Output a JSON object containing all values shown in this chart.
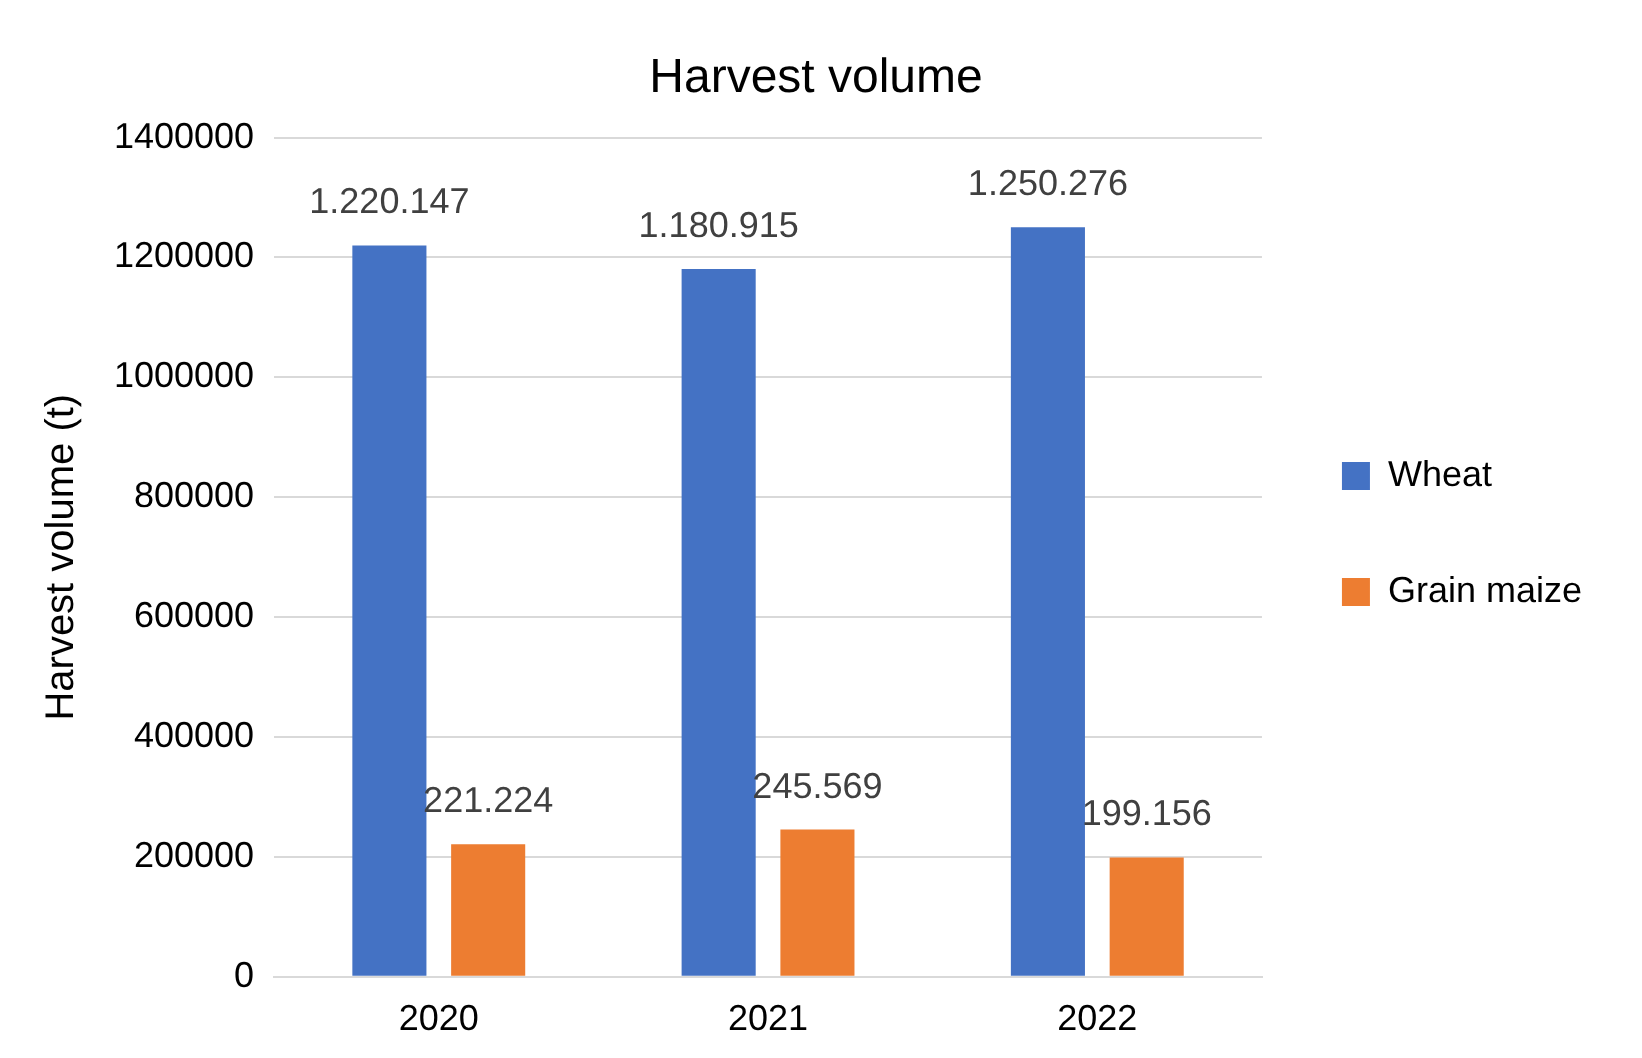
{
  "chart_data": {
    "type": "bar",
    "title": "Harvest volume",
    "ylabel": "Harvest volume (t)",
    "categories": [
      "2020",
      "2021",
      "2022"
    ],
    "series": [
      {
        "name": "Wheat",
        "color": "#4472c4",
        "values": [
          1220147,
          1180915,
          1250276
        ],
        "value_labels": [
          "1.220.147",
          "1.180.915",
          "1.250.276"
        ]
      },
      {
        "name": "Grain maize",
        "color": "#ed7d31",
        "values": [
          221224,
          245569,
          199156
        ],
        "value_labels": [
          "221.224",
          "245.569",
          "199.156"
        ]
      }
    ],
    "ylim": [
      0,
      1400000
    ],
    "yticks": [
      0,
      200000,
      400000,
      600000,
      800000,
      1000000,
      1200000,
      1400000
    ],
    "grid": "y",
    "legend": "right"
  }
}
